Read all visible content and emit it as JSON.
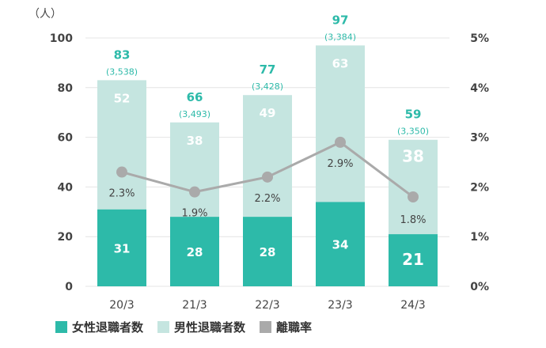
{
  "chart_data": {
    "type": "bar",
    "subtype": "stacked-bar-with-line",
    "unit_label": "（人）",
    "categories": [
      "20/3",
      "21/3",
      "22/3",
      "23/3",
      "24/3"
    ],
    "series": [
      {
        "name": "女性退職者数",
        "values": [
          31,
          28,
          28,
          34,
          21
        ],
        "color": "#2dbaa9"
      },
      {
        "name": "男性退職者数",
        "values": [
          52,
          38,
          49,
          63,
          38
        ],
        "color": "#c5e5e0"
      }
    ],
    "totals": [
      83,
      66,
      77,
      97,
      59
    ],
    "total_subs": [
      "(3,538)",
      "(3,493)",
      "(3,428)",
      "(3,384)",
      "(3,350)"
    ],
    "line_series": {
      "name": "離職率",
      "values": [
        2.3,
        1.9,
        2.2,
        2.9,
        1.8
      ],
      "labels": [
        "2.3%",
        "1.9%",
        "2.2%",
        "2.9%",
        "1.8%"
      ],
      "color": "#aaaaaa"
    },
    "y_left": {
      "min": 0,
      "max": 100,
      "ticks": [
        "0",
        "20",
        "40",
        "60",
        "80",
        "100"
      ]
    },
    "y_right": {
      "min": 0,
      "max": 5,
      "ticks": [
        "0%",
        "1%",
        "2%",
        "3%",
        "4%",
        "5%"
      ]
    },
    "legend": [
      "女性退職者数",
      "男性退職者数",
      "離職率"
    ]
  }
}
